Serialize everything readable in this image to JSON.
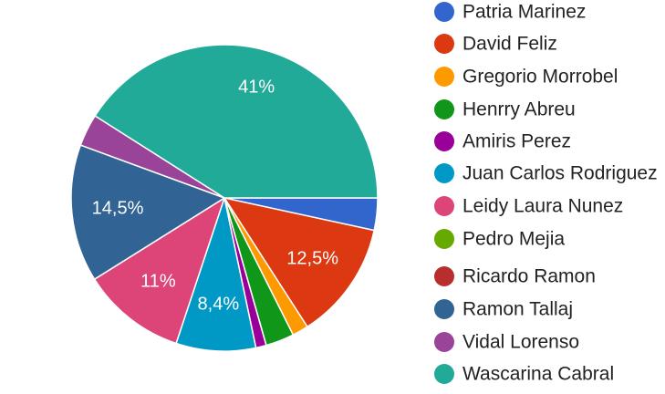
{
  "chart_data": {
    "type": "pie",
    "categories": [
      "Patria Marinez",
      "David Feliz",
      "Gregorio Morrobel",
      "Henrry Abreu",
      "Amiris Perez",
      "Juan Carlos Rodriguez",
      "Leidy Laura Nunez",
      "Pedro Mejia",
      "Ricardo Ramon",
      "Ramon Tallaj",
      "Vidal Lorenso",
      "Wascarina Cabral"
    ],
    "values": [
      3.4,
      12.5,
      1.7,
      3,
      1.1,
      8.4,
      11,
      0,
      0,
      14.5,
      3.4,
      41
    ],
    "value_labels": [
      null,
      "12,5%",
      null,
      null,
      null,
      "8,4%",
      "11%",
      null,
      null,
      "14,5%",
      null,
      "41%"
    ],
    "colors": [
      "#3366cc",
      "#dc3912",
      "#ff9900",
      "#109618",
      "#990099",
      "#0099c6",
      "#dd4477",
      "#66aa00",
      "#b82e2e",
      "#316395",
      "#994499",
      "#22aa99"
    ]
  }
}
